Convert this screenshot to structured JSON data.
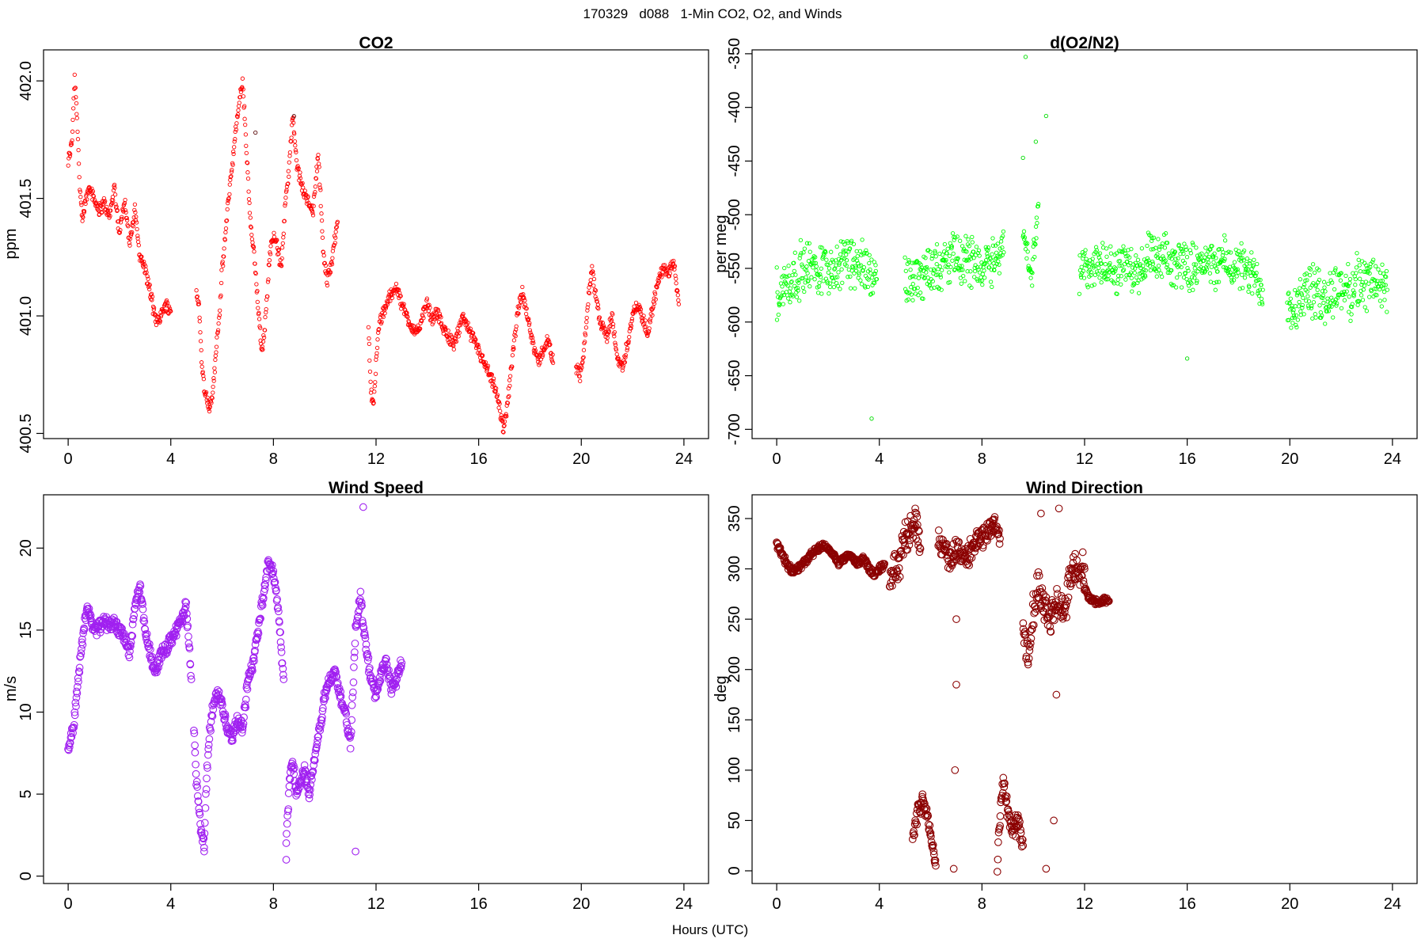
{
  "figure": {
    "title": "170329   d088   1-Min CO2, O2, and Winds",
    "xlabel": "Hours (UTC)"
  },
  "chart_data": [
    {
      "type": "scatter",
      "title": "CO2",
      "ylabel": "ppm",
      "xlabel": "",
      "xlim": [
        -0.96,
        24.96
      ],
      "ylim": [
        400.478,
        402.132
      ],
      "xticks": [
        0,
        4,
        8,
        12,
        16,
        20,
        24
      ],
      "yticks": [
        400.5,
        401.0,
        401.5,
        402.0
      ],
      "ytick_labels": [
        "400.5",
        "401.0",
        "401.5",
        "402.0"
      ],
      "color": "#ff0000",
      "accent_color": "#5a0a0a",
      "marker": "open-circle-small",
      "grid": false,
      "segments": [
        {
          "x": [
            0.0,
            0.15,
            0.25,
            0.35,
            0.45,
            0.55,
            0.7,
            0.85,
            1.0,
            1.2,
            1.4,
            1.6,
            1.8,
            2.0,
            2.2,
            2.4,
            2.6,
            2.8,
            3.0,
            3.2,
            3.4,
            3.6,
            3.8,
            4.0
          ],
          "y": [
            401.65,
            401.75,
            402.02,
            401.85,
            401.55,
            401.4,
            401.5,
            401.56,
            401.5,
            401.45,
            401.48,
            401.42,
            401.55,
            401.35,
            401.5,
            401.3,
            401.45,
            401.25,
            401.2,
            401.1,
            400.98,
            401.0,
            401.05,
            401.02
          ]
        },
        {
          "x": [
            5.0,
            5.1,
            5.2,
            5.3,
            5.4,
            5.5,
            5.6,
            5.7,
            5.8,
            5.9,
            6.0,
            6.1,
            6.2,
            6.35,
            6.5,
            6.65,
            6.8,
            6.95,
            7.1,
            7.25,
            7.4,
            7.55,
            7.7,
            7.85,
            8.0,
            8.15,
            8.3,
            8.45,
            8.6,
            8.75,
            8.9,
            9.1,
            9.3,
            9.55,
            9.75,
            9.95,
            10.1,
            10.3,
            10.5
          ],
          "y": [
            401.1,
            401.05,
            400.8,
            400.7,
            400.65,
            400.6,
            400.65,
            400.75,
            400.9,
            401.0,
            401.2,
            401.3,
            401.45,
            401.6,
            401.75,
            401.9,
            402.0,
            401.7,
            401.4,
            401.25,
            401.05,
            400.85,
            401.0,
            401.25,
            401.35,
            401.3,
            401.2,
            401.45,
            401.62,
            401.85,
            401.65,
            401.55,
            401.5,
            401.45,
            401.7,
            401.25,
            401.15,
            401.25,
            401.4
          ]
        },
        {
          "x": [
            11.7,
            11.8,
            11.9,
            12.0,
            12.1,
            12.25,
            12.4,
            12.6,
            12.8,
            13.0,
            13.2,
            13.4,
            13.6,
            13.8,
            14.0,
            14.2,
            14.4,
            14.6,
            14.8,
            15.0,
            15.2,
            15.4,
            15.6,
            15.8,
            16.0,
            16.2,
            16.4,
            16.6,
            16.8,
            16.95,
            17.1,
            17.3,
            17.5,
            17.7,
            17.9,
            18.1,
            18.3,
            18.5,
            18.7,
            18.9
          ],
          "y": [
            400.95,
            400.7,
            400.6,
            400.8,
            400.95,
            401.0,
            401.05,
            401.1,
            401.12,
            401.05,
            401.0,
            400.95,
            400.92,
            401.0,
            401.05,
            400.98,
            401.02,
            400.95,
            400.92,
            400.88,
            400.92,
            401.0,
            400.95,
            400.9,
            400.85,
            400.8,
            400.75,
            400.7,
            400.62,
            400.52,
            400.6,
            400.8,
            401.0,
            401.1,
            401.0,
            400.9,
            400.8,
            400.85,
            400.9,
            400.8
          ]
        },
        {
          "x": [
            19.8,
            19.95,
            20.1,
            20.25,
            20.4,
            20.55,
            20.7,
            20.85,
            21.0,
            21.2,
            21.4,
            21.6,
            21.8,
            22.0,
            22.2,
            22.4,
            22.6,
            22.8,
            23.0,
            23.2,
            23.4,
            23.6,
            23.8
          ],
          "y": [
            400.78,
            400.75,
            400.85,
            401.05,
            401.2,
            401.1,
            401.0,
            400.95,
            400.9,
            401.0,
            400.82,
            400.78,
            400.88,
            401.0,
            401.05,
            400.98,
            400.92,
            401.05,
            401.15,
            401.2,
            401.18,
            401.25,
            401.05
          ]
        }
      ],
      "highlight_points": [
        {
          "x": 7.3,
          "y": 401.78
        },
        {
          "x": 8.8,
          "y": 401.85
        }
      ]
    },
    {
      "type": "scatter",
      "title": "d(O2/N2)",
      "ylabel": "per meg",
      "xlabel": "",
      "xlim": [
        -0.96,
        24.96
      ],
      "ylim": [
        -708.6,
        -346.4
      ],
      "xticks": [
        0,
        4,
        8,
        12,
        16,
        20,
        24
      ],
      "yticks": [
        -700,
        -650,
        -600,
        -550,
        -500,
        -450,
        -400,
        -350
      ],
      "ytick_labels": [
        "-700",
        "-650",
        "-600",
        "-550",
        "-500",
        "-450",
        "-400",
        "-350"
      ],
      "color": "#00ff00",
      "accent_color": "#0a5a0a",
      "marker": "open-circle-small",
      "grid": false,
      "segments": [
        {
          "x": [
            0.0,
            0.2,
            0.4,
            0.6,
            0.8,
            1.0,
            1.3,
            1.6,
            1.9,
            2.2,
            2.5,
            2.8,
            3.1,
            3.4,
            3.7,
            3.9
          ],
          "y": [
            -575,
            -570,
            -565,
            -560,
            -555,
            -550,
            -548,
            -552,
            -545,
            -550,
            -548,
            -540,
            -550,
            -545,
            -555,
            -560
          ],
          "spread": 30
        },
        {
          "x": [
            5.0,
            5.3,
            5.6,
            5.9,
            6.2,
            6.5,
            6.8,
            7.1,
            7.4,
            7.7,
            8.0,
            8.3,
            8.6,
            8.85
          ],
          "y": [
            -565,
            -560,
            -555,
            -550,
            -545,
            -548,
            -540,
            -542,
            -545,
            -540,
            -548,
            -542,
            -538,
            -535
          ],
          "spread": 28
        },
        {
          "x": [
            9.6,
            9.9,
            10.2
          ],
          "y": [
            -510,
            -560,
            -490
          ],
          "spread": 20
        },
        {
          "x": [
            11.8,
            12.1,
            12.4,
            12.7,
            13.0,
            13.3,
            13.6,
            13.9,
            14.2,
            14.5,
            14.8,
            15.1,
            15.4,
            15.7,
            16.0,
            16.3,
            16.6,
            16.9,
            17.2,
            17.5,
            17.8,
            18.1,
            18.4,
            18.7,
            18.95
          ],
          "y": [
            -555,
            -550,
            -545,
            -548,
            -552,
            -550,
            -545,
            -555,
            -548,
            -540,
            -545,
            -540,
            -548,
            -542,
            -550,
            -545,
            -540,
            -548,
            -545,
            -542,
            -550,
            -548,
            -555,
            -560,
            -570
          ],
          "spread": 26
        },
        {
          "x": [
            19.9,
            20.2,
            20.5,
            20.8,
            21.1,
            21.4,
            21.7,
            22.0,
            22.3,
            22.6,
            22.9,
            23.2,
            23.5,
            23.8
          ],
          "y": [
            -580,
            -585,
            -575,
            -570,
            -575,
            -580,
            -570,
            -565,
            -575,
            -560,
            -565,
            -560,
            -565,
            -570
          ],
          "spread": 30
        }
      ],
      "highlight_points": [
        {
          "x": 9.6,
          "y": -447
        },
        {
          "x": 10.1,
          "y": -432
        },
        {
          "x": 10.5,
          "y": -408
        },
        {
          "x": 9.7,
          "y": -353
        },
        {
          "x": 3.7,
          "y": -690
        },
        {
          "x": 16.0,
          "y": -634
        }
      ],
      "highlight_color": "#00dd00"
    },
    {
      "type": "scatter",
      "title": "Wind Speed",
      "ylabel": "m/s",
      "xlabel": "",
      "xlim": [
        -0.96,
        24.96
      ],
      "ylim": [
        -0.45,
        23.25
      ],
      "xticks": [
        0,
        4,
        8,
        12,
        16,
        20,
        24
      ],
      "yticks": [
        0,
        5,
        10,
        15,
        20
      ],
      "ytick_labels": [
        "0",
        "5",
        "10",
        "15",
        "20"
      ],
      "color": "#a020f0",
      "marker": "open-circle-large",
      "grid": false,
      "segments": [
        {
          "x": [
            0.0,
            0.1,
            0.2,
            0.3,
            0.4,
            0.5,
            0.6,
            0.7,
            0.8,
            0.9,
            1.0,
            1.2,
            1.4,
            1.6,
            1.8,
            2.0,
            2.2,
            2.4,
            2.6,
            2.8,
            3.0,
            3.2,
            3.4,
            3.6,
            3.8,
            4.0,
            4.2,
            4.4,
            4.6,
            4.8
          ],
          "y": [
            7.5,
            8.5,
            9.0,
            10.5,
            12.0,
            13.5,
            15.0,
            16.0,
            16.2,
            15.5,
            15.0,
            15.2,
            15.5,
            15.3,
            15.4,
            15.0,
            14.5,
            13.5,
            16.5,
            17.5,
            15.0,
            13.5,
            12.5,
            13.5,
            13.8,
            14.5,
            15.0,
            15.5,
            16.5,
            12.0
          ]
        },
        {
          "x": [
            4.9,
            5.0,
            5.1,
            5.2,
            5.3,
            5.4,
            5.5,
            5.6,
            5.8,
            6.0,
            6.2,
            6.4,
            6.6,
            6.8,
            7.0,
            7.2,
            7.4,
            7.6,
            7.8,
            8.0,
            8.2,
            8.4
          ],
          "y": [
            9.0,
            6.0,
            4.0,
            2.5,
            2.0,
            6.0,
            8.5,
            10.0,
            11.0,
            10.5,
            9.0,
            8.5,
            9.5,
            9.0,
            12.0,
            13.0,
            15.0,
            17.0,
            19.0,
            18.5,
            16.0,
            12.0
          ]
        },
        {
          "x": [
            8.5,
            8.6,
            8.7,
            8.8,
            8.9,
            9.0,
            9.2,
            9.4,
            9.6,
            9.8,
            10.0,
            10.2,
            10.4,
            10.6,
            10.8,
            11.0,
            11.2,
            11.4,
            11.6,
            11.8,
            12.0,
            12.2,
            12.4,
            12.6,
            12.8,
            13.0
          ],
          "y": [
            2.0,
            5.0,
            7.0,
            6.5,
            5.0,
            5.5,
            6.5,
            5.0,
            7.0,
            9.0,
            11.0,
            12.0,
            12.5,
            11.0,
            10.0,
            8.0,
            15.0,
            17.0,
            14.0,
            12.0,
            11.0,
            12.5,
            13.0,
            11.5,
            12.0,
            13.0
          ]
        }
      ],
      "highlight_points": [
        {
          "x": 11.5,
          "y": 22.5
        },
        {
          "x": 8.5,
          "y": 1.0
        },
        {
          "x": 11.2,
          "y": 1.5
        },
        {
          "x": 5.3,
          "y": 1.5
        }
      ]
    },
    {
      "type": "scatter",
      "title": "Wind Direction",
      "ylabel": "deg",
      "xlabel": "",
      "xlim": [
        -0.96,
        24.96
      ],
      "ylim": [
        -12.6,
        373.6
      ],
      "xticks": [
        0,
        4,
        8,
        12,
        16,
        20,
        24
      ],
      "yticks": [
        0,
        50,
        100,
        150,
        200,
        250,
        300,
        350
      ],
      "ytick_labels": [
        "0",
        "50",
        "100",
        "150",
        "200",
        "250",
        "300",
        "350"
      ],
      "color": "#8b0000",
      "marker": "open-circle-large",
      "grid": false,
      "segments": [
        {
          "x": [
            0.0,
            0.2,
            0.4,
            0.6,
            0.8,
            1.0,
            1.2,
            1.4,
            1.6,
            1.8,
            2.0,
            2.2,
            2.4,
            2.6,
            2.8,
            3.0,
            3.2,
            3.4,
            3.6,
            3.8,
            4.0,
            4.2
          ],
          "y": [
            325,
            315,
            305,
            298,
            300,
            305,
            310,
            315,
            320,
            322,
            320,
            315,
            305,
            310,
            315,
            310,
            305,
            310,
            300,
            295,
            300,
            305
          ],
          "spread": 4
        },
        {
          "x": [
            4.4,
            4.6,
            4.8,
            5.0,
            5.2,
            5.4,
            5.6
          ],
          "y": [
            285,
            300,
            310,
            330,
            340,
            350,
            320
          ],
          "spread": 18
        },
        {
          "x": [
            5.3,
            5.5,
            5.7,
            5.9,
            6.0,
            6.1,
            6.2
          ],
          "y": [
            30,
            60,
            70,
            50,
            35,
            20,
            5
          ],
          "spread": 10
        },
        {
          "x": [
            6.3,
            6.5,
            6.7,
            6.9,
            7.1,
            7.3,
            7.5,
            7.7,
            7.9,
            8.1,
            8.3,
            8.5,
            8.7
          ],
          "y": [
            330,
            320,
            310,
            315,
            320,
            310,
            315,
            325,
            330,
            335,
            340,
            345,
            330
          ],
          "spread": 14
        },
        {
          "x": [
            8.6,
            8.8,
            9.0,
            9.2,
            9.4,
            9.6
          ],
          "y": [
            10,
            90,
            60,
            40,
            50,
            25
          ],
          "spread": 14
        },
        {
          "x": [
            9.6,
            9.8,
            10.0,
            10.2,
            10.4,
            10.6,
            10.8,
            11.0,
            11.2,
            11.4,
            11.6,
            11.8,
            12.0
          ],
          "y": [
            240,
            210,
            260,
            280,
            270,
            250,
            260,
            270,
            250,
            290,
            300,
            295,
            300
          ],
          "spread": 22
        },
        {
          "x": [
            12.0,
            12.2,
            12.4,
            12.6,
            12.8,
            12.95
          ],
          "y": [
            280,
            270,
            268,
            265,
            270,
            268
          ],
          "spread": 4
        }
      ],
      "highlight_points": [
        {
          "x": 7.0,
          "y": 185
        },
        {
          "x": 7.0,
          "y": 250
        },
        {
          "x": 10.9,
          "y": 175
        },
        {
          "x": 6.95,
          "y": 100
        },
        {
          "x": 10.8,
          "y": 50
        },
        {
          "x": 10.5,
          "y": 2
        },
        {
          "x": 6.9,
          "y": 2
        },
        {
          "x": 5.4,
          "y": 360
        },
        {
          "x": 11.0,
          "y": 360
        },
        {
          "x": 10.3,
          "y": 355
        }
      ]
    }
  ]
}
